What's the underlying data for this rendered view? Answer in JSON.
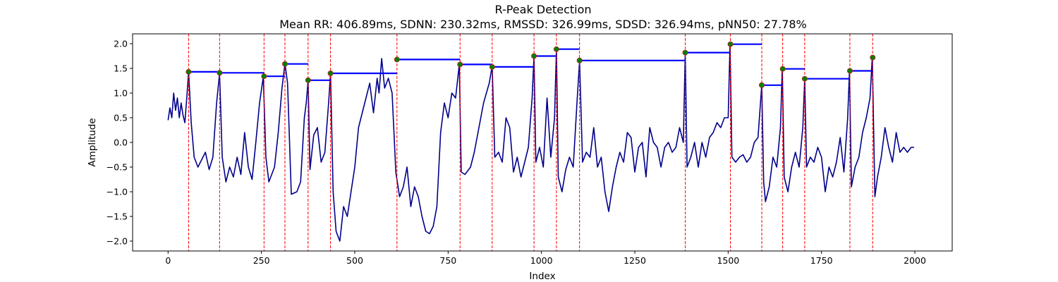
{
  "chart_data": {
    "type": "line",
    "title": "R-Peak Detection",
    "subtitle": "Mean RR: 406.89ms, SDNN: 230.32ms, RMSSD: 326.99ms, SDSD: 326.94ms, pNN50: 27.78%",
    "xlabel": "Index",
    "ylabel": "Amplitude",
    "xlim": [
      -95,
      2100
    ],
    "ylim": [
      -2.2,
      2.2
    ],
    "xticks": [
      0,
      250,
      500,
      750,
      1000,
      1250,
      1500,
      1750,
      2000
    ],
    "yticks": [
      -2.0,
      -1.5,
      -1.0,
      -0.5,
      0.0,
      0.5,
      1.0,
      1.5,
      2.0
    ],
    "grid": false,
    "colors": {
      "signal": "#00008b",
      "peak_line": "#ff0000",
      "peak_marker": "#008000",
      "rr_segment": "#0000ff"
    },
    "signal_keypoints": [
      [
        0,
        0.45
      ],
      [
        5,
        0.7
      ],
      [
        10,
        0.5
      ],
      [
        15,
        1.0
      ],
      [
        20,
        0.65
      ],
      [
        25,
        0.9
      ],
      [
        30,
        0.5
      ],
      [
        35,
        0.8
      ],
      [
        40,
        0.55
      ],
      [
        45,
        0.4
      ],
      [
        50,
        0.9
      ],
      [
        55,
        1.43
      ],
      [
        62,
        0.4
      ],
      [
        70,
        -0.3
      ],
      [
        80,
        -0.5
      ],
      [
        90,
        -0.35
      ],
      [
        100,
        -0.2
      ],
      [
        110,
        -0.55
      ],
      [
        120,
        -0.3
      ],
      [
        130,
        0.8
      ],
      [
        138,
        1.4
      ],
      [
        145,
        -0.3
      ],
      [
        155,
        -0.8
      ],
      [
        165,
        -0.5
      ],
      [
        175,
        -0.7
      ],
      [
        185,
        -0.3
      ],
      [
        195,
        -0.65
      ],
      [
        205,
        0.2
      ],
      [
        215,
        -0.5
      ],
      [
        225,
        -0.75
      ],
      [
        235,
        0.0
      ],
      [
        245,
        0.8
      ],
      [
        255,
        1.33
      ],
      [
        262,
        -0.3
      ],
      [
        270,
        -0.8
      ],
      [
        285,
        -0.5
      ],
      [
        295,
        0.2
      ],
      [
        305,
        1.1
      ],
      [
        313,
        1.6
      ],
      [
        320,
        1.2
      ],
      [
        330,
        -1.05
      ],
      [
        345,
        -1.0
      ],
      [
        355,
        -0.8
      ],
      [
        365,
        0.5
      ],
      [
        370,
        0.8
      ],
      [
        375,
        1.25
      ],
      [
        380,
        -0.55
      ],
      [
        390,
        0.15
      ],
      [
        400,
        0.3
      ],
      [
        410,
        -0.4
      ],
      [
        420,
        -0.2
      ],
      [
        430,
        0.8
      ],
      [
        435,
        1.4
      ],
      [
        442,
        -1.0
      ],
      [
        450,
        -1.8
      ],
      [
        460,
        -2.0
      ],
      [
        470,
        -1.3
      ],
      [
        480,
        -1.5
      ],
      [
        490,
        -1.0
      ],
      [
        500,
        -0.5
      ],
      [
        510,
        0.3
      ],
      [
        520,
        0.6
      ],
      [
        530,
        0.9
      ],
      [
        540,
        1.2
      ],
      [
        550,
        0.6
      ],
      [
        560,
        1.3
      ],
      [
        565,
        1.0
      ],
      [
        572,
        1.7
      ],
      [
        580,
        1.1
      ],
      [
        590,
        1.3
      ],
      [
        600,
        1.0
      ],
      [
        610,
        -0.6
      ],
      [
        620,
        -1.1
      ],
      [
        630,
        -0.9
      ],
      [
        640,
        -0.5
      ],
      [
        650,
        -1.3
      ],
      [
        660,
        -0.9
      ],
      [
        670,
        -1.1
      ],
      [
        680,
        -1.5
      ],
      [
        690,
        -1.8
      ],
      [
        700,
        -1.85
      ],
      [
        710,
        -1.7
      ],
      [
        720,
        -1.3
      ],
      [
        730,
        0.2
      ],
      [
        740,
        0.8
      ],
      [
        750,
        0.5
      ],
      [
        760,
        1.0
      ],
      [
        770,
        0.9
      ],
      [
        780,
        1.58
      ],
      [
        785,
        -0.6
      ],
      [
        795,
        -0.65
      ],
      [
        810,
        -0.5
      ],
      [
        820,
        -0.2
      ],
      [
        830,
        0.2
      ],
      [
        845,
        0.8
      ],
      [
        860,
        1.2
      ],
      [
        868,
        1.55
      ],
      [
        875,
        -0.3
      ],
      [
        885,
        -0.2
      ],
      [
        895,
        -0.4
      ],
      [
        905,
        0.5
      ],
      [
        915,
        0.3
      ],
      [
        925,
        -0.6
      ],
      [
        935,
        -0.3
      ],
      [
        945,
        -0.7
      ],
      [
        955,
        -0.4
      ],
      [
        965,
        -0.1
      ],
      [
        975,
        0.9
      ],
      [
        980,
        1.75
      ],
      [
        985,
        -0.4
      ],
      [
        995,
        -0.1
      ],
      [
        1005,
        -0.5
      ],
      [
        1015,
        0.9
      ],
      [
        1025,
        -0.3
      ],
      [
        1035,
        0.5
      ],
      [
        1040,
        1.9
      ],
      [
        1045,
        -0.7
      ],
      [
        1055,
        -1.0
      ],
      [
        1065,
        -0.55
      ],
      [
        1075,
        -0.3
      ],
      [
        1085,
        -0.5
      ],
      [
        1095,
        0.8
      ],
      [
        1102,
        1.65
      ],
      [
        1110,
        -0.4
      ],
      [
        1120,
        -0.2
      ],
      [
        1130,
        -0.3
      ],
      [
        1140,
        0.3
      ],
      [
        1150,
        -0.5
      ],
      [
        1160,
        -0.3
      ],
      [
        1170,
        -1.0
      ],
      [
        1180,
        -1.4
      ],
      [
        1190,
        -0.9
      ],
      [
        1200,
        -0.5
      ],
      [
        1210,
        -0.2
      ],
      [
        1220,
        -0.4
      ],
      [
        1230,
        0.2
      ],
      [
        1240,
        0.1
      ],
      [
        1250,
        -0.6
      ],
      [
        1260,
        -0.1
      ],
      [
        1270,
        0.0
      ],
      [
        1280,
        -0.7
      ],
      [
        1290,
        0.3
      ],
      [
        1300,
        0.0
      ],
      [
        1310,
        -0.1
      ],
      [
        1320,
        -0.5
      ],
      [
        1330,
        -0.1
      ],
      [
        1340,
        0.0
      ],
      [
        1350,
        -0.2
      ],
      [
        1360,
        -0.1
      ],
      [
        1370,
        0.3
      ],
      [
        1380,
        0.0
      ],
      [
        1385,
        1.82
      ],
      [
        1390,
        -0.5
      ],
      [
        1400,
        -0.3
      ],
      [
        1410,
        0.0
      ],
      [
        1420,
        -0.5
      ],
      [
        1430,
        0.0
      ],
      [
        1440,
        -0.3
      ],
      [
        1450,
        0.1
      ],
      [
        1460,
        0.2
      ],
      [
        1470,
        0.4
      ],
      [
        1480,
        0.3
      ],
      [
        1490,
        0.5
      ],
      [
        1500,
        0.5
      ],
      [
        1505,
        1.99
      ],
      [
        1510,
        -0.3
      ],
      [
        1520,
        -0.4
      ],
      [
        1530,
        -0.3
      ],
      [
        1540,
        -0.25
      ],
      [
        1550,
        -0.4
      ],
      [
        1560,
        -0.3
      ],
      [
        1570,
        0.0
      ],
      [
        1580,
        0.1
      ],
      [
        1590,
        1.17
      ],
      [
        1595,
        -0.8
      ],
      [
        1600,
        -1.2
      ],
      [
        1610,
        -0.9
      ],
      [
        1620,
        -0.3
      ],
      [
        1630,
        -0.5
      ],
      [
        1640,
        0.3
      ],
      [
        1645,
        1.5
      ],
      [
        1650,
        -0.7
      ],
      [
        1660,
        -1.0
      ],
      [
        1670,
        -0.5
      ],
      [
        1680,
        -0.2
      ],
      [
        1690,
        -0.5
      ],
      [
        1700,
        0.3
      ],
      [
        1705,
        1.3
      ],
      [
        1710,
        -0.5
      ],
      [
        1720,
        -0.3
      ],
      [
        1730,
        -0.4
      ],
      [
        1740,
        -0.1
      ],
      [
        1750,
        -0.3
      ],
      [
        1760,
        -1.0
      ],
      [
        1770,
        -0.5
      ],
      [
        1780,
        -0.7
      ],
      [
        1790,
        -0.4
      ],
      [
        1800,
        0.1
      ],
      [
        1810,
        -0.6
      ],
      [
        1820,
        0.5
      ],
      [
        1825,
        1.45
      ],
      [
        1830,
        -0.9
      ],
      [
        1840,
        -0.5
      ],
      [
        1850,
        -0.3
      ],
      [
        1860,
        0.2
      ],
      [
        1870,
        0.5
      ],
      [
        1880,
        0.9
      ],
      [
        1886,
        1.73
      ],
      [
        1893,
        -1.1
      ],
      [
        1900,
        -0.7
      ],
      [
        1910,
        -0.3
      ],
      [
        1920,
        0.3
      ],
      [
        1930,
        -0.1
      ],
      [
        1940,
        -0.4
      ],
      [
        1950,
        0.2
      ],
      [
        1960,
        -0.2
      ],
      [
        1970,
        -0.1
      ],
      [
        1980,
        -0.2
      ],
      [
        1990,
        -0.1
      ],
      [
        1998,
        -0.1
      ]
    ],
    "r_peaks": [
      {
        "x": 55,
        "y": 1.43
      },
      {
        "x": 138,
        "y": 1.41
      },
      {
        "x": 257,
        "y": 1.34
      },
      {
        "x": 313,
        "y": 1.59
      },
      {
        "x": 375,
        "y": 1.26
      },
      {
        "x": 435,
        "y": 1.4
      },
      {
        "x": 613,
        "y": 1.68
      },
      {
        "x": 782,
        "y": 1.58
      },
      {
        "x": 868,
        "y": 1.53
      },
      {
        "x": 980,
        "y": 1.75
      },
      {
        "x": 1040,
        "y": 1.89
      },
      {
        "x": 1102,
        "y": 1.66
      },
      {
        "x": 1385,
        "y": 1.82
      },
      {
        "x": 1506,
        "y": 1.99
      },
      {
        "x": 1590,
        "y": 1.16
      },
      {
        "x": 1646,
        "y": 1.49
      },
      {
        "x": 1705,
        "y": 1.29
      },
      {
        "x": 1826,
        "y": 1.45
      },
      {
        "x": 1887,
        "y": 1.72
      }
    ],
    "rr_segments": [
      {
        "x1": 55,
        "x2": 138,
        "y": 1.43
      },
      {
        "x1": 138,
        "x2": 257,
        "y": 1.41
      },
      {
        "x1": 257,
        "x2": 313,
        "y": 1.34
      },
      {
        "x1": 313,
        "x2": 375,
        "y": 1.59
      },
      {
        "x1": 375,
        "x2": 435,
        "y": 1.26
      },
      {
        "x1": 435,
        "x2": 613,
        "y": 1.4
      },
      {
        "x1": 613,
        "x2": 782,
        "y": 1.68
      },
      {
        "x1": 782,
        "x2": 868,
        "y": 1.58
      },
      {
        "x1": 868,
        "x2": 980,
        "y": 1.53
      },
      {
        "x1": 980,
        "x2": 1040,
        "y": 1.75
      },
      {
        "x1": 1040,
        "x2": 1102,
        "y": 1.89
      },
      {
        "x1": 1102,
        "x2": 1385,
        "y": 1.66
      },
      {
        "x1": 1385,
        "x2": 1506,
        "y": 1.82
      },
      {
        "x1": 1506,
        "x2": 1590,
        "y": 1.99
      },
      {
        "x1": 1590,
        "x2": 1646,
        "y": 1.16
      },
      {
        "x1": 1646,
        "x2": 1705,
        "y": 1.49
      },
      {
        "x1": 1705,
        "x2": 1826,
        "y": 1.29
      },
      {
        "x1": 1826,
        "x2": 1887,
        "y": 1.45
      }
    ]
  }
}
